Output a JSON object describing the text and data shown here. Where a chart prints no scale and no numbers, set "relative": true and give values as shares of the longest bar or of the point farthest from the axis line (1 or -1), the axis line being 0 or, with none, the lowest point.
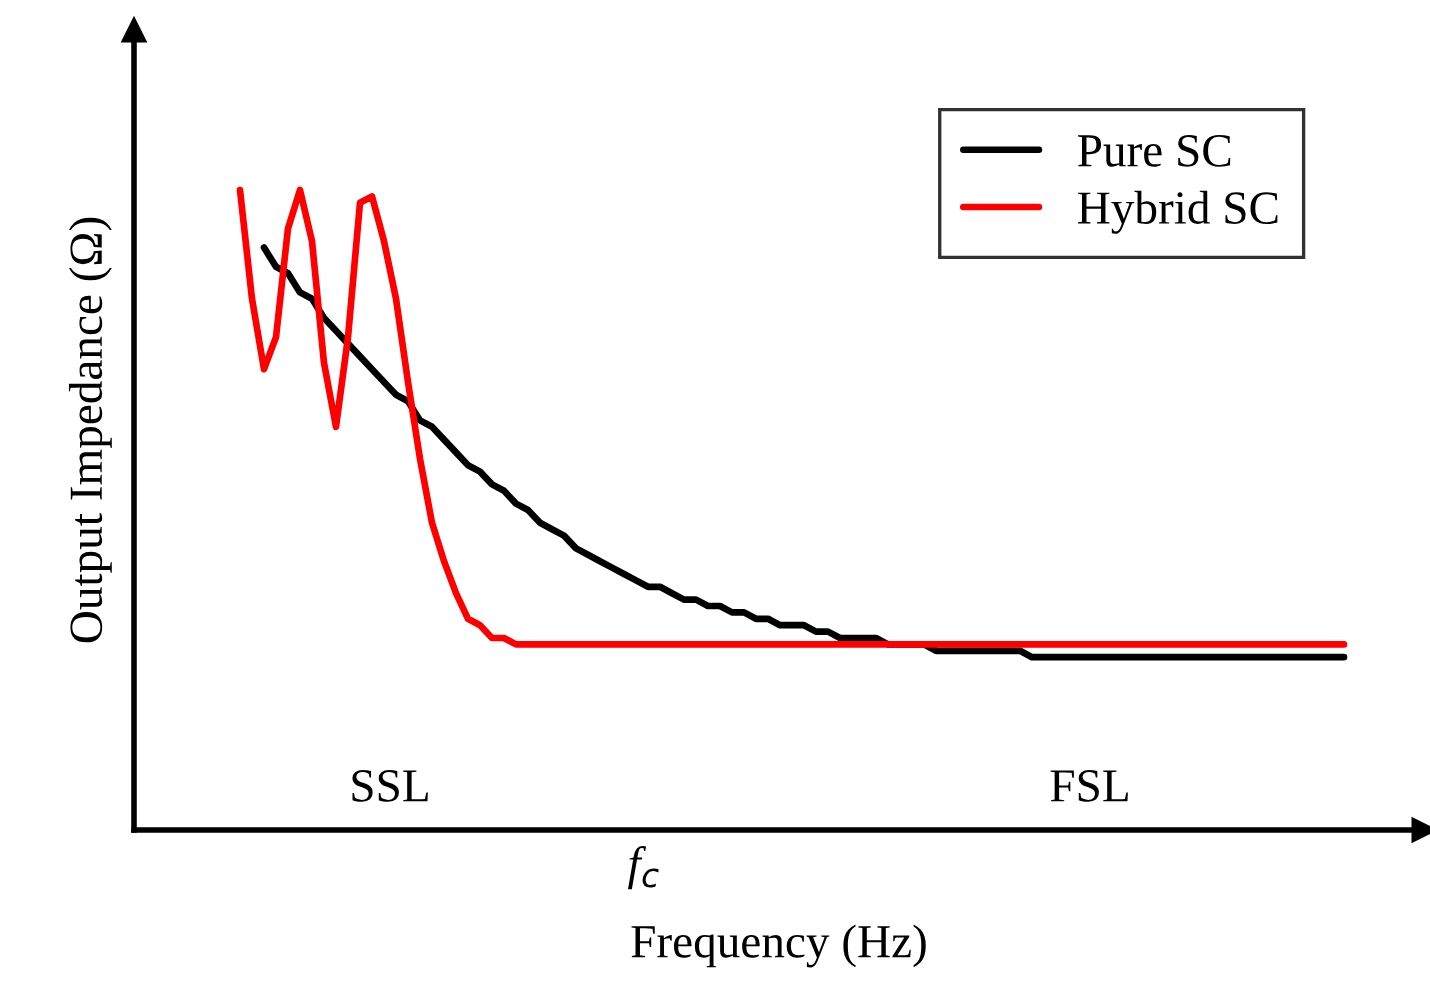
{
  "chart_data": {
    "type": "line",
    "relative": true,
    "xlabel": "Frequency (Hz)",
    "ylabel": "Output Impedance (Ω)",
    "categories": [
      null,
      null,
      null,
      null,
      null,
      null,
      null,
      null,
      null,
      null,
      null,
      null,
      null,
      null,
      null,
      null,
      null,
      null,
      null,
      null,
      null,
      null,
      null,
      null,
      null,
      null,
      null,
      null,
      null,
      null,
      null,
      null,
      null,
      null,
      null,
      null,
      null,
      null,
      null,
      null,
      null,
      null,
      null,
      null,
      null,
      null,
      null,
      null,
      null,
      null,
      null,
      null,
      null,
      null,
      null,
      null,
      null,
      null,
      null,
      null,
      null,
      null,
      null,
      null,
      null,
      null,
      null,
      null,
      null,
      null,
      null,
      null,
      null,
      null,
      null,
      null,
      null,
      null,
      null,
      null,
      null,
      null,
      null,
      null,
      null,
      null,
      null,
      null,
      null,
      null,
      null,
      null,
      null
    ],
    "series": [
      {
        "name": "Pure SC",
        "color": "#000000",
        "values": [
          null,
          null,
          0.91,
          0.88,
          0.87,
          0.84,
          0.83,
          0.8,
          0.78,
          0.76,
          0.74,
          0.72,
          0.7,
          0.68,
          0.67,
          0.64,
          0.63,
          0.61,
          0.59,
          0.57,
          0.56,
          0.54,
          0.53,
          0.51,
          0.5,
          0.48,
          0.47,
          0.46,
          0.44,
          0.43,
          0.42,
          0.41,
          0.4,
          0.39,
          0.38,
          0.38,
          0.37,
          0.36,
          0.36,
          0.35,
          0.35,
          0.34,
          0.34,
          0.33,
          0.33,
          0.32,
          0.32,
          0.32,
          0.31,
          0.31,
          0.3,
          0.3,
          0.3,
          0.3,
          0.29,
          0.29,
          0.29,
          0.29,
          0.28,
          0.28,
          0.28,
          0.28,
          0.28,
          0.28,
          0.28,
          0.28,
          0.27,
          0.27,
          0.27,
          0.27,
          0.27,
          0.27,
          0.27,
          0.27,
          0.27,
          0.27,
          0.27,
          0.27,
          0.27,
          0.27,
          0.27,
          0.27,
          0.27,
          0.27,
          0.27,
          0.27,
          0.27,
          0.27,
          0.27,
          0.27,
          0.27,
          0.27,
          0.27
        ]
      },
      {
        "name": "Hybrid SC",
        "color": "#ff0000",
        "values": [
          1.0,
          0.83,
          0.72,
          0.77,
          0.94,
          1.0,
          0.92,
          0.73,
          0.63,
          0.77,
          0.98,
          0.99,
          0.92,
          0.83,
          0.7,
          0.58,
          0.48,
          0.42,
          0.37,
          0.33,
          0.32,
          0.3,
          0.3,
          0.29,
          0.29,
          0.29,
          0.29,
          0.29,
          0.29,
          0.29,
          0.29,
          0.29,
          0.29,
          0.29,
          0.29,
          0.29,
          0.29,
          0.29,
          0.29,
          0.29,
          0.29,
          0.29,
          0.29,
          0.29,
          0.29,
          0.29,
          0.29,
          0.29,
          0.29,
          0.29,
          0.29,
          0.29,
          0.29,
          0.29,
          0.29,
          0.29,
          0.29,
          0.29,
          0.29,
          0.29,
          0.29,
          0.29,
          0.29,
          0.29,
          0.29,
          0.29,
          0.29,
          0.29,
          0.29,
          0.29,
          0.29,
          0.29,
          0.29,
          0.29,
          0.29,
          0.29,
          0.29,
          0.29,
          0.29,
          0.29,
          0.29,
          0.29,
          0.29,
          0.29,
          0.29,
          0.29,
          0.29,
          0.29,
          0.29,
          0.29,
          0.29,
          0.29,
          0.29
        ]
      }
    ],
    "annotations": [
      "SSL",
      "FSL",
      "f$_{c}$"
    ],
    "legend": "top right",
    "marker": "none",
    "line_style": "solid"
  }
}
